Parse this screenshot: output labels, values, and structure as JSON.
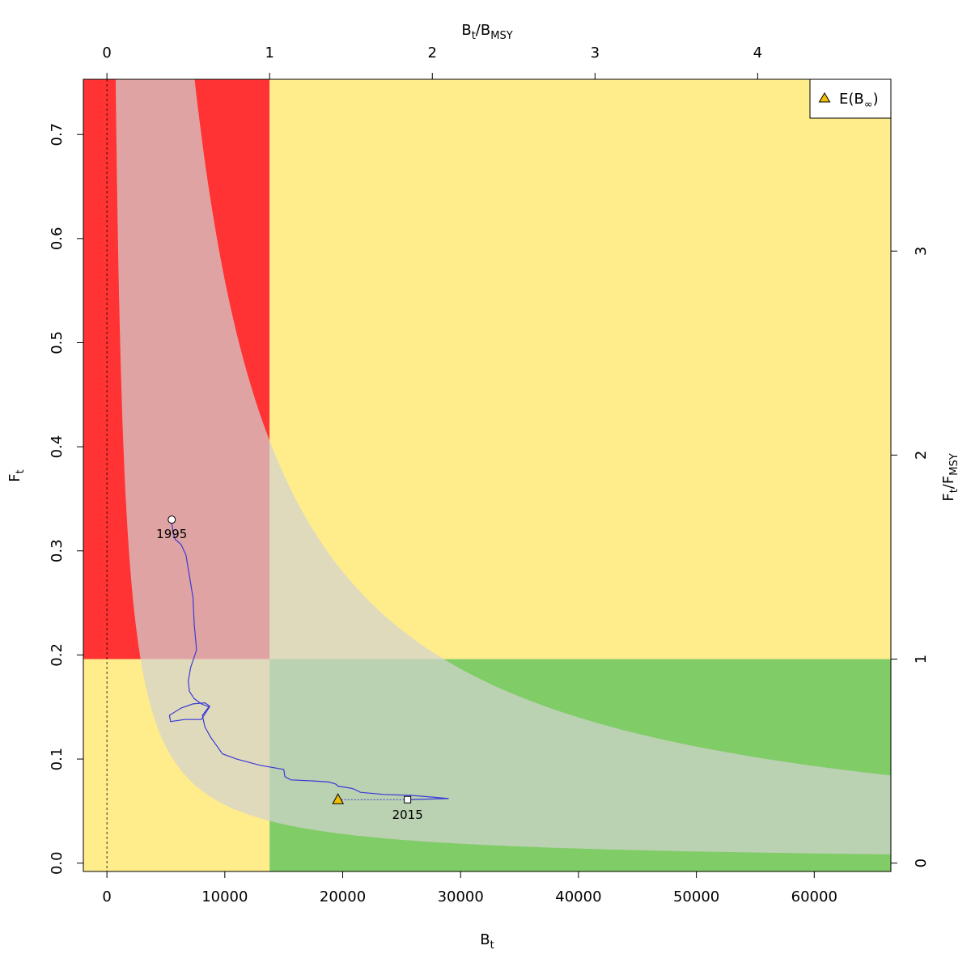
{
  "chart_data": {
    "type": "kobe-phase-plot",
    "bottom_axis": {
      "label_main": "B",
      "label_sub": "t",
      "range": [
        -2000,
        66500
      ],
      "ticks": [
        0,
        10000,
        20000,
        30000,
        40000,
        50000,
        60000
      ],
      "tick_labels": [
        "0",
        "10000",
        "20000",
        "30000",
        "40000",
        "50000",
        "60000"
      ]
    },
    "left_axis": {
      "label_main": "F",
      "label_sub": "t",
      "range": [
        -0.008,
        0.753
      ],
      "ticks": [
        0.0,
        0.1,
        0.2,
        0.3,
        0.4,
        0.5,
        0.6,
        0.7
      ],
      "tick_labels": [
        "0.0",
        "0.1",
        "0.2",
        "0.3",
        "0.4",
        "0.5",
        "0.6",
        "0.7"
      ]
    },
    "top_axis": {
      "label_main": "B",
      "label_sub": "t",
      "label_sep": "/",
      "label_main2": "B",
      "label_sub2": "MSY",
      "ticks": [
        0,
        1,
        2,
        3,
        4
      ],
      "tick_labels": [
        "0",
        "1",
        "2",
        "3",
        "4"
      ]
    },
    "right_axis": {
      "label_main": "F",
      "label_sub": "t",
      "label_sep": "/",
      "label_main2": "F",
      "label_sub2": "MSY",
      "ticks": [
        0,
        1,
        2,
        3
      ],
      "tick_labels": [
        "0",
        "1",
        "2",
        "3"
      ]
    },
    "bmsy": 13800,
    "fmsy": 0.196,
    "msy_constant": 2800,
    "msy_band": [
      560,
      5600
    ],
    "colors": {
      "red": "#ff3333",
      "yellow": "#ffec8b",
      "green": "#80cc66",
      "band": "#d3d3d3",
      "trajectory": "#3a3ad6",
      "triangle": "#f0c000"
    },
    "trajectory": [
      [
        5500,
        0.327
      ],
      [
        5600,
        0.318
      ],
      [
        5800,
        0.311
      ],
      [
        6300,
        0.306
      ],
      [
        6700,
        0.296
      ],
      [
        7000,
        0.276
      ],
      [
        7300,
        0.255
      ],
      [
        7400,
        0.23
      ],
      [
        7600,
        0.205
      ],
      [
        7400,
        0.198
      ],
      [
        7100,
        0.188
      ],
      [
        6900,
        0.175
      ],
      [
        7000,
        0.165
      ],
      [
        7400,
        0.158
      ],
      [
        8000,
        0.153
      ],
      [
        8700,
        0.15
      ],
      [
        8000,
        0.138
      ],
      [
        6600,
        0.138
      ],
      [
        5400,
        0.136
      ],
      [
        5300,
        0.142
      ],
      [
        6300,
        0.149
      ],
      [
        7300,
        0.153
      ],
      [
        8300,
        0.154
      ],
      [
        8700,
        0.151
      ],
      [
        8100,
        0.142
      ],
      [
        8300,
        0.131
      ],
      [
        8800,
        0.121
      ],
      [
        9300,
        0.113
      ],
      [
        9800,
        0.105
      ],
      [
        11000,
        0.1
      ],
      [
        13000,
        0.094
      ],
      [
        15000,
        0.09
      ],
      [
        15100,
        0.083
      ],
      [
        15600,
        0.08
      ],
      [
        17500,
        0.079
      ],
      [
        18800,
        0.078
      ],
      [
        19400,
        0.076
      ],
      [
        19600,
        0.074
      ],
      [
        20700,
        0.072
      ],
      [
        21000,
        0.071
      ],
      [
        21500,
        0.068
      ],
      [
        23500,
        0.066
      ],
      [
        26000,
        0.065
      ],
      [
        29000,
        0.062
      ],
      [
        25500,
        0.061
      ]
    ],
    "start_point": {
      "B": 5500,
      "F": 0.33,
      "label": "1995"
    },
    "end_point": {
      "B": 25500,
      "F": 0.061,
      "label": "2015"
    },
    "expected_equilibrium": {
      "B": 19600,
      "F": 0.061
    },
    "legend": {
      "position": "top-right",
      "entry_main": "E(B",
      "entry_sub": "∞",
      "entry_close": ")"
    }
  }
}
